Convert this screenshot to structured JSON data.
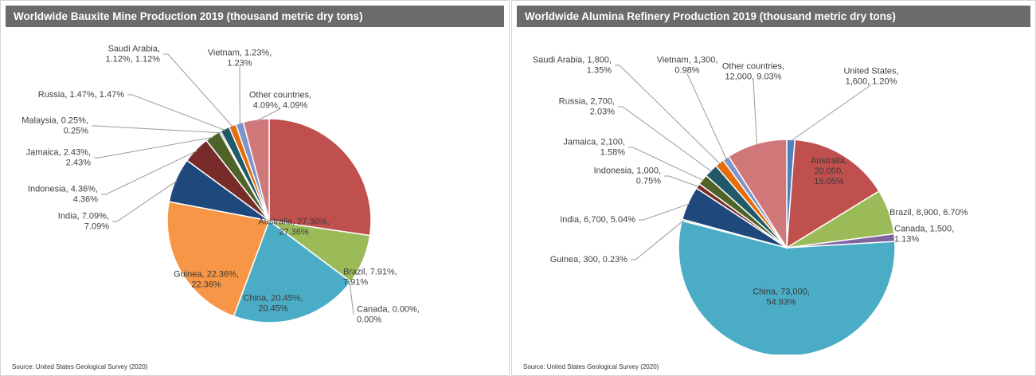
{
  "chart_data": [
    {
      "type": "pie",
      "title": "Worldwide Bauxite Mine Production 2019 (thousand metric dry tons)",
      "source": "Source: United States Geological Survey (2020)",
      "slices": [
        {
          "name": "Australia",
          "percent": 27.36,
          "color": "#c0504d",
          "label": [
            "Australia, 27.36%,",
            "27.36%"
          ]
        },
        {
          "name": "Brazil",
          "percent": 7.91,
          "color": "#9bbb59",
          "label": [
            "Brazil, 7.91%,",
            "7.91%"
          ]
        },
        {
          "name": "Canada",
          "percent": 0.0,
          "color": "#8064a2",
          "label": [
            "Canada, 0.00%,",
            "0.00%"
          ]
        },
        {
          "name": "China",
          "percent": 20.45,
          "color": "#4bacc6",
          "label": [
            "China, 20.45%,",
            "20.45%"
          ]
        },
        {
          "name": "Guinea",
          "percent": 22.36,
          "color": "#f79646",
          "label": [
            "Guinea, 22.36%,",
            "22.36%"
          ]
        },
        {
          "name": "India",
          "percent": 7.09,
          "color": "#1f497d",
          "label": [
            "India, 7.09%,",
            "7.09%"
          ]
        },
        {
          "name": "Indonesia",
          "percent": 4.36,
          "color": "#772c2a",
          "label": [
            "Indonesia, 4.36%,",
            "4.36%"
          ]
        },
        {
          "name": "Jamaica",
          "percent": 2.43,
          "color": "#4f6228",
          "label": [
            "Jamaica, 2.43%,",
            "2.43%"
          ]
        },
        {
          "name": "Malaysia",
          "percent": 0.25,
          "color": "#403152",
          "label": [
            "Malaysia, 0.25%,",
            "0.25%"
          ]
        },
        {
          "name": "Russia",
          "percent": 1.47,
          "color": "#215968",
          "label": [
            "Russia, 1.47%, 1.47%"
          ]
        },
        {
          "name": "Saudi Arabia",
          "percent": 1.12,
          "color": "#e46c0a",
          "label": [
            "Saudi Arabia,",
            "1.12%, 1.12%"
          ]
        },
        {
          "name": "Vietnam",
          "percent": 1.23,
          "color": "#7f95c8",
          "label": [
            "Vietnam, 1.23%,",
            "1.23%"
          ]
        },
        {
          "name": "Other countries",
          "percent": 4.09,
          "color": "#d0777a",
          "label": [
            "Other countries,",
            "4.09%, 4.09%"
          ]
        }
      ]
    },
    {
      "type": "pie",
      "title": "Worldwide Alumina Refinery Production 2019 (thousand metric dry tons)",
      "source": "Source: United States Geological Survey (2020)",
      "slices": [
        {
          "name": "United States",
          "value": 1600,
          "percent": 1.2,
          "color": "#4f81bd",
          "label": [
            "United States,",
            "1,600, 1.20%"
          ]
        },
        {
          "name": "Australia",
          "value": 20000,
          "percent": 15.05,
          "color": "#c0504d",
          "label": [
            "Australia,",
            "20,000,",
            "15.05%"
          ]
        },
        {
          "name": "Brazil",
          "value": 8900,
          "percent": 6.7,
          "color": "#9bbb59",
          "label": [
            "Brazil, 8,900, 6.70%"
          ]
        },
        {
          "name": "Canada",
          "value": 1500,
          "percent": 1.13,
          "color": "#8064a2",
          "label": [
            "Canada, 1,500,",
            "1.13%"
          ]
        },
        {
          "name": "China",
          "value": 73000,
          "percent": 54.93,
          "color": "#4bacc6",
          "label": [
            "China, 73,000,",
            "54.93%"
          ]
        },
        {
          "name": "Guinea",
          "value": 300,
          "percent": 0.23,
          "color": "#f79646",
          "label": [
            "Guinea, 300, 0.23%"
          ]
        },
        {
          "name": "India",
          "value": 6700,
          "percent": 5.04,
          "color": "#1f497d",
          "label": [
            "India, 6,700, 5.04%"
          ]
        },
        {
          "name": "Indonesia",
          "value": 1000,
          "percent": 0.75,
          "color": "#772c2a",
          "label": [
            "Indonesia, 1,000,",
            "0.75%"
          ]
        },
        {
          "name": "Jamaica",
          "value": 2100,
          "percent": 1.58,
          "color": "#4f6228",
          "label": [
            "Jamaica, 2,100,",
            "1.58%"
          ]
        },
        {
          "name": "Russia",
          "value": 2700,
          "percent": 2.03,
          "color": "#215968",
          "label": [
            "Russia, 2,700,",
            "2.03%"
          ]
        },
        {
          "name": "Saudi Arabia",
          "value": 1800,
          "percent": 1.35,
          "color": "#e46c0a",
          "label": [
            "Saudi Arabia, 1,800,",
            "1.35%"
          ]
        },
        {
          "name": "Vietnam",
          "value": 1300,
          "percent": 0.98,
          "color": "#7f95c8",
          "label": [
            "Vietnam, 1,300,",
            "0.98%"
          ]
        },
        {
          "name": "Other countries",
          "value": 12000,
          "percent": 9.03,
          "color": "#d0777a",
          "label": [
            "Other countries,",
            "12,000, 9.03%"
          ]
        }
      ]
    }
  ]
}
